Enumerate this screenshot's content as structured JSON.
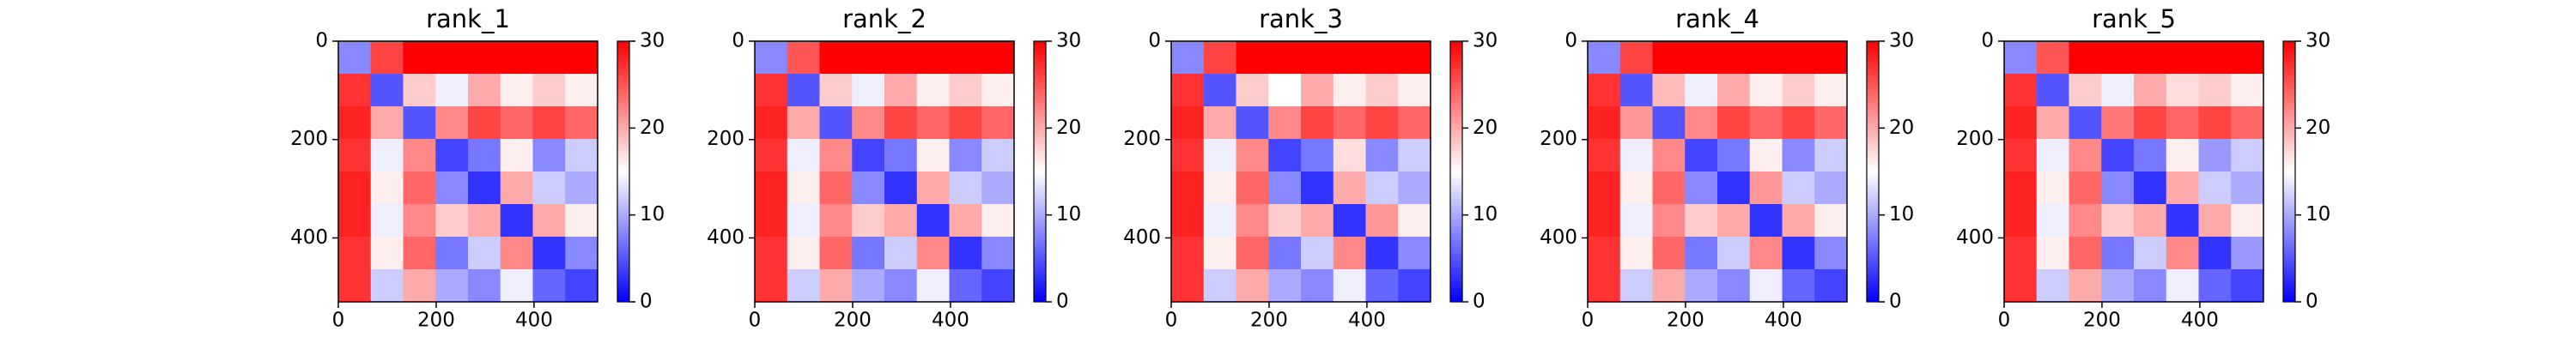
{
  "chart_data": [
    {
      "type": "heatmap",
      "title": "rank_1",
      "colormap": "bwr",
      "xlim": [
        0,
        530
      ],
      "ylim": [
        530,
        0
      ],
      "xticks": [
        0,
        200,
        400
      ],
      "yticks": [
        0,
        200,
        400
      ],
      "colorbar": {
        "clim": [
          0,
          30
        ],
        "ticks": [
          0,
          10,
          20,
          30
        ]
      },
      "values": [
        [
          8,
          26,
          30,
          30,
          30,
          30,
          30,
          30
        ],
        [
          27,
          5,
          18,
          14,
          20,
          16,
          18,
          16
        ],
        [
          28,
          20,
          5,
          22,
          26,
          24,
          26,
          24
        ],
        [
          27,
          14,
          22,
          4,
          7,
          16,
          8,
          12
        ],
        [
          28,
          16,
          24,
          8,
          3,
          20,
          12,
          10
        ],
        [
          28,
          14,
          22,
          18,
          20,
          3,
          20,
          16
        ],
        [
          27,
          16,
          24,
          7,
          12,
          22,
          3,
          8
        ],
        [
          27,
          12,
          20,
          10,
          8,
          14,
          6,
          4
        ]
      ]
    },
    {
      "type": "heatmap",
      "title": "rank_2",
      "colormap": "bwr",
      "xlim": [
        0,
        530
      ],
      "ylim": [
        530,
        0
      ],
      "xticks": [
        0,
        200,
        400
      ],
      "yticks": [
        0,
        200,
        400
      ],
      "colorbar": {
        "clim": [
          0,
          30
        ],
        "ticks": [
          0,
          10,
          20,
          30
        ]
      },
      "values": [
        [
          8,
          25,
          30,
          30,
          30,
          30,
          30,
          30
        ],
        [
          27,
          5,
          18,
          14,
          20,
          16,
          18,
          16
        ],
        [
          28,
          20,
          5,
          22,
          26,
          24,
          26,
          24
        ],
        [
          27,
          14,
          22,
          4,
          7,
          16,
          8,
          12
        ],
        [
          28,
          16,
          24,
          8,
          3,
          20,
          12,
          10
        ],
        [
          28,
          14,
          22,
          18,
          20,
          3,
          20,
          16
        ],
        [
          27,
          16,
          24,
          7,
          12,
          22,
          3,
          8
        ],
        [
          27,
          12,
          20,
          10,
          8,
          14,
          6,
          4
        ]
      ]
    },
    {
      "type": "heatmap",
      "title": "rank_3",
      "colormap": "bwr",
      "xlim": [
        0,
        530
      ],
      "ylim": [
        530,
        0
      ],
      "xticks": [
        0,
        200,
        400
      ],
      "yticks": [
        0,
        200,
        400
      ],
      "colorbar": {
        "clim": [
          0,
          30
        ],
        "ticks": [
          0,
          10,
          20,
          30
        ]
      },
      "values": [
        [
          8,
          26,
          30,
          30,
          30,
          30,
          30,
          30
        ],
        [
          27,
          5,
          18,
          15,
          20,
          16,
          18,
          16
        ],
        [
          28,
          20,
          5,
          22,
          26,
          24,
          26,
          24
        ],
        [
          27,
          14,
          22,
          4,
          7,
          17,
          8,
          12
        ],
        [
          28,
          16,
          24,
          8,
          3,
          20,
          12,
          10
        ],
        [
          28,
          14,
          22,
          18,
          20,
          3,
          21,
          16
        ],
        [
          27,
          16,
          24,
          7,
          12,
          22,
          3,
          8
        ],
        [
          27,
          12,
          20,
          10,
          8,
          14,
          6,
          4
        ]
      ]
    },
    {
      "type": "heatmap",
      "title": "rank_4",
      "colormap": "bwr",
      "xlim": [
        0,
        530
      ],
      "ylim": [
        530,
        0
      ],
      "xticks": [
        0,
        200,
        400
      ],
      "yticks": [
        0,
        200,
        400
      ],
      "colorbar": {
        "clim": [
          0,
          30
        ],
        "ticks": [
          0,
          10,
          20,
          30
        ]
      },
      "values": [
        [
          8,
          26,
          30,
          30,
          30,
          30,
          30,
          30
        ],
        [
          27,
          5,
          19,
          14,
          20,
          16,
          18,
          16
        ],
        [
          28,
          21,
          5,
          22,
          26,
          24,
          26,
          24
        ],
        [
          27,
          14,
          22,
          4,
          7,
          16,
          8,
          12
        ],
        [
          28,
          16,
          24,
          8,
          3,
          21,
          12,
          10
        ],
        [
          28,
          14,
          22,
          18,
          20,
          3,
          20,
          16
        ],
        [
          27,
          16,
          24,
          7,
          12,
          22,
          3,
          8
        ],
        [
          27,
          12,
          20,
          10,
          8,
          14,
          6,
          4
        ]
      ]
    },
    {
      "type": "heatmap",
      "title": "rank_5",
      "colormap": "bwr",
      "xlim": [
        0,
        530
      ],
      "ylim": [
        530,
        0
      ],
      "xticks": [
        0,
        200,
        400
      ],
      "yticks": [
        0,
        200,
        400
      ],
      "colorbar": {
        "clim": [
          0,
          30
        ],
        "ticks": [
          0,
          10,
          20,
          30
        ]
      },
      "values": [
        [
          8,
          25,
          30,
          30,
          30,
          30,
          30,
          30
        ],
        [
          27,
          5,
          18,
          14,
          20,
          17,
          18,
          16
        ],
        [
          28,
          20,
          5,
          23,
          26,
          24,
          26,
          24
        ],
        [
          27,
          14,
          22,
          4,
          7,
          16,
          9,
          12
        ],
        [
          28,
          16,
          24,
          8,
          3,
          20,
          12,
          10
        ],
        [
          28,
          14,
          22,
          18,
          20,
          3,
          20,
          16
        ],
        [
          27,
          16,
          24,
          7,
          12,
          22,
          3,
          9
        ],
        [
          27,
          12,
          20,
          10,
          8,
          14,
          6,
          4
        ]
      ]
    }
  ]
}
